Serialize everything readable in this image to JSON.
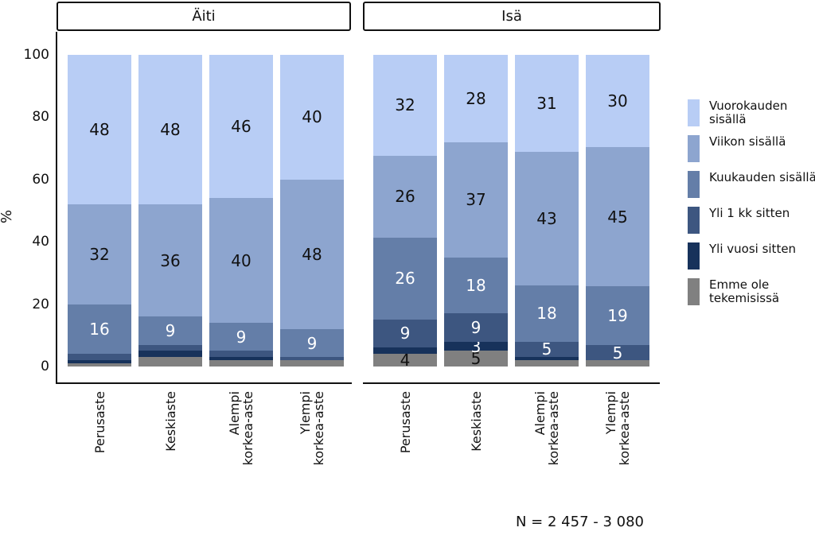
{
  "chart_data": {
    "type": "bar",
    "stacked": true,
    "ylabel": "%",
    "ylim": [
      0,
      100
    ],
    "yticks": [
      0,
      20,
      40,
      60,
      80,
      100
    ],
    "grid": false,
    "legend_position": "right",
    "facets": [
      "Äiti",
      "Isä"
    ],
    "categories": [
      "Perusaste",
      "Keskiaste",
      "Alempi korkea-aste",
      "Ylempi korkea-aste"
    ],
    "category_labels": [
      [
        "Perusaste"
      ],
      [
        "Keskiaste"
      ],
      [
        "Alempi",
        "korkea-aste"
      ],
      [
        "Ylempi",
        "korkea-aste"
      ]
    ],
    "series": [
      {
        "name": "Vuorokauden sisällä",
        "color": "#b8cdf5",
        "values": {
          "Äiti": [
            48,
            48,
            46,
            40
          ],
          "Isä": [
            32,
            28,
            31,
            30
          ]
        },
        "labels": {
          "Äiti": [
            "48",
            "48",
            "46",
            "40"
          ],
          "Isä": [
            "32",
            "28",
            "31",
            "30"
          ]
        }
      },
      {
        "name": "Viikon sisällä",
        "color": "#8da5cf",
        "values": {
          "Äiti": [
            32,
            36,
            40,
            48
          ],
          "Isä": [
            26,
            37,
            43,
            45
          ]
        },
        "labels": {
          "Äiti": [
            "32",
            "36",
            "40",
            "48"
          ],
          "Isä": [
            "26",
            "37",
            "43",
            "45"
          ]
        }
      },
      {
        "name": "Kuukauden sisällä",
        "color": "#647ea8",
        "values": {
          "Äiti": [
            16,
            9,
            9,
            9
          ],
          "Isä": [
            26,
            18,
            18,
            19
          ]
        },
        "labels": {
          "Äiti": [
            "16",
            "9",
            "9",
            "9"
          ],
          "Isä": [
            "26",
            "18",
            "18",
            "19"
          ]
        }
      },
      {
        "name": "Yli 1 kk sitten",
        "color": "#3d5680",
        "values": {
          "Äiti": [
            2,
            2,
            2,
            1
          ],
          "Isä": [
            9,
            9,
            5,
            5
          ]
        },
        "labels": {
          "Äiti": [
            "",
            "",
            "",
            ""
          ],
          "Isä": [
            "9",
            "9",
            "5",
            "5"
          ]
        }
      },
      {
        "name": "Yli vuosi sitten",
        "color": "#17325b",
        "values": {
          "Äiti": [
            1,
            2,
            1,
            0
          ],
          "Isä": [
            2,
            3,
            1,
            0
          ]
        },
        "labels": {
          "Äiti": [
            "",
            "",
            "",
            ""
          ],
          "Isä": [
            "",
            "3",
            "",
            ""
          ]
        }
      },
      {
        "name": "Emme ole tekemisissä",
        "color": "#808080",
        "values": {
          "Äiti": [
            1,
            3,
            2,
            2
          ],
          "Isä": [
            4,
            5,
            2,
            2
          ]
        },
        "labels": {
          "Äiti": [
            "",
            "",
            "",
            ""
          ],
          "Isä": [
            "4",
            "5",
            "",
            ""
          ]
        }
      }
    ],
    "annotation": "N = 2 457 - 3 080"
  },
  "legend": {
    "items": [
      {
        "label": "Vuorokauden sisällä",
        "color": "#b8cdf5"
      },
      {
        "label": "Viikon sisällä",
        "color": "#8da5cf"
      },
      {
        "label": "Kuukauden sisällä",
        "color": "#647ea8"
      },
      {
        "label": "Yli 1 kk sitten",
        "color": "#3d5680"
      },
      {
        "label": "Yli vuosi sitten",
        "color": "#17325b"
      },
      {
        "label": "Emme ole tekemisissä",
        "color": "#808080"
      }
    ]
  },
  "facet_titles": {
    "left": "Äiti",
    "right": "Isä"
  },
  "y_axis": {
    "title": "%",
    "ticks": [
      "0",
      "20",
      "40",
      "60",
      "80",
      "100"
    ]
  },
  "note": "N = 2 457 - 3 080"
}
